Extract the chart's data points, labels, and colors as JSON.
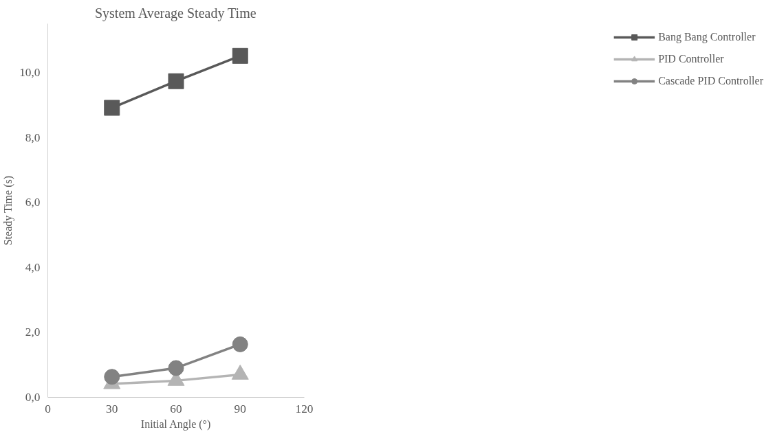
{
  "chart_data": {
    "type": "line",
    "title": "System Average Steady Time",
    "xlabel": "Initial Angle (°)",
    "ylabel": "Steady Time (s)",
    "x": [
      30,
      60,
      90
    ],
    "series": [
      {
        "name": "Bang Bang Controller",
        "color": "#595959",
        "marker": "square",
        "values": [
          8.91,
          9.73,
          10.51
        ]
      },
      {
        "name": "PID Controller",
        "color": "#b4b4b4",
        "marker": "triangle",
        "values": [
          0.41,
          0.51,
          0.7
        ]
      },
      {
        "name": "Cascade PID Controller",
        "color": "#828282",
        "marker": "circle",
        "values": [
          0.63,
          0.9,
          1.63
        ]
      }
    ],
    "xlim": [
      0,
      120
    ],
    "xticks": [
      0,
      30,
      60,
      90,
      120
    ],
    "ylim": [
      0,
      11.5
    ],
    "yticks": [
      {
        "value": 0,
        "label": "0,0"
      },
      {
        "value": 2,
        "label": "2,0"
      },
      {
        "value": 4,
        "label": "4,0"
      },
      {
        "value": 6,
        "label": "6,0"
      },
      {
        "value": 8,
        "label": "8,0"
      },
      {
        "value": 10,
        "label": "10,0"
      }
    ],
    "grid": false,
    "legend": "right",
    "line_style": "solid"
  }
}
